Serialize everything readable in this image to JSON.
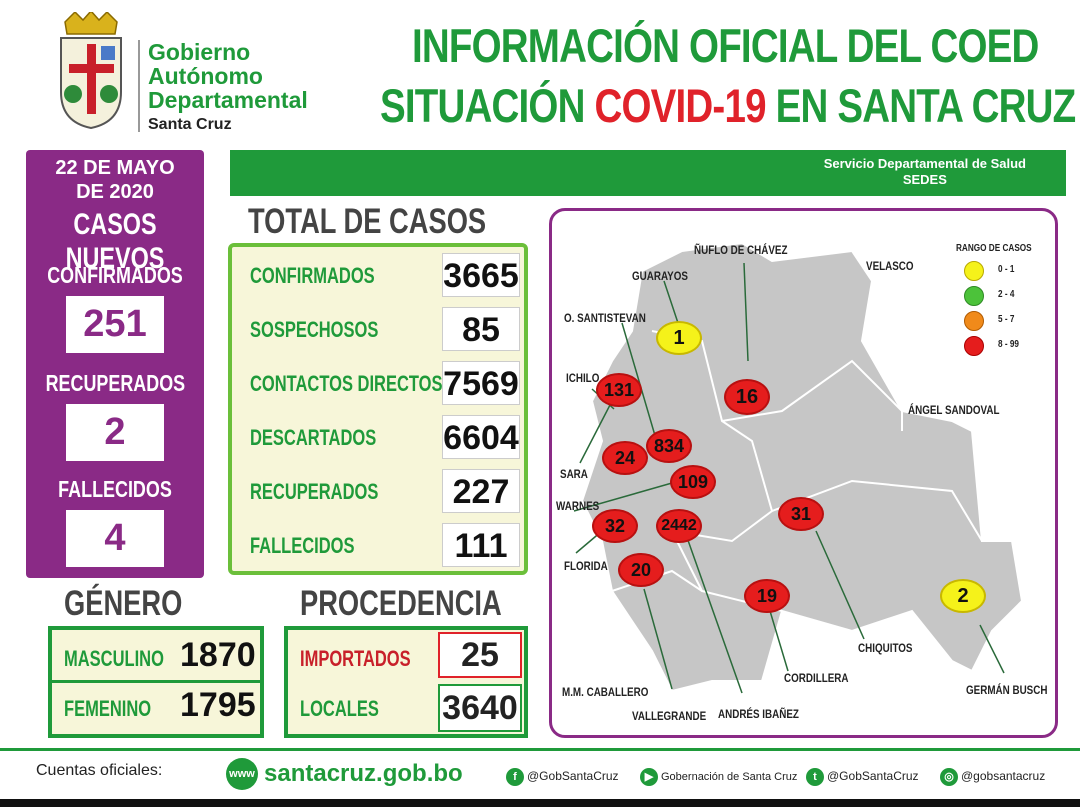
{
  "header": {
    "gov": [
      "Gobierno",
      "Autónomo",
      "Departamental"
    ],
    "gov_sub": "Santa Cruz",
    "title_line1": "INFORMACIÓN OFICIAL DEL COED",
    "title_line2_a": "SITUACIÓN ",
    "title_line2_b": "COVID-19",
    "title_line2_c": " EN SANTA CRUZ"
  },
  "banner": {
    "line1": "Servicio Departamental de Salud",
    "line2": "SEDES"
  },
  "left_panel": {
    "date1": "22 DE MAYO",
    "date2": "DE 2020",
    "title": "CASOS NUEVOS",
    "confirmados_label": "CONFIRMADOS",
    "confirmados": "251",
    "recuperados_label": "RECUPERADOS",
    "recuperados": "2",
    "fallecidos_label": "FALLECIDOS",
    "fallecidos": "4"
  },
  "total": {
    "title": "TOTAL DE CASOS",
    "rows": [
      {
        "label": "CONFIRMADOS",
        "value": "3665"
      },
      {
        "label": "SOSPECHOSOS",
        "value": "85"
      },
      {
        "label": "CONTACTOS DIRECTOS",
        "value": "7569"
      },
      {
        "label": "DESCARTADOS",
        "value": "6604"
      },
      {
        "label": "RECUPERADOS",
        "value": "227"
      },
      {
        "label": "FALLECIDOS",
        "value": "111"
      }
    ]
  },
  "genero": {
    "title": "GÉNERO",
    "masculino_label": "MASCULINO",
    "masculino": "1870",
    "femenino_label": "FEMENINO",
    "femenino": "1795"
  },
  "procedencia": {
    "title": "PROCEDENCIA",
    "importados_label": "IMPORTADOS",
    "importados": "25",
    "locales_label": "LOCALES",
    "locales": "3640"
  },
  "map": {
    "legend_title": "RANGO DE CASOS",
    "legend": [
      {
        "label": "0 - 1",
        "color": "#f5f21a"
      },
      {
        "label": "2 - 4",
        "color": "#4cc23a"
      },
      {
        "label": "5 - 7",
        "color": "#f08a1a"
      },
      {
        "label": "8 - 99",
        "color": "#e51d1d"
      }
    ],
    "labels": {
      "nuflo": "ÑUFLO DE CHÁVEZ",
      "guarayos": "GUARAYOS",
      "velasco": "VELASCO",
      "santistevan": "O. SANTISTEVAN",
      "ichilo": "ICHILO",
      "sara": "SARA",
      "warnes": "WARNES",
      "florida": "FLORIDA",
      "angel": "ÁNGEL SANDOVAL",
      "chiquitos": "CHIQUITOS",
      "cordillera": "CORDILLERA",
      "german": "GERMÁN BUSCH",
      "caballero": "M.M. CABALLERO",
      "vallegrande": "VALLEGRANDE",
      "andres": "ANDRÉS IBAÑEZ"
    },
    "values": {
      "guarayos": "1",
      "nuflo": "16",
      "ichilo": "131",
      "santistevan": "834",
      "sara": "24",
      "warnes": "109",
      "florida": "32",
      "andres": "2442",
      "chiquitos": "31",
      "vallegrande": "20",
      "cordillera": "19",
      "german": "2"
    }
  },
  "footer": {
    "label": "Cuentas oficiales:",
    "web": "santacruz.gob.bo",
    "facebook": "@GobSantaCruz",
    "youtube": "Gobernación de Santa Cruz",
    "twitter": "@GobSantaCruz",
    "instagram": "@gobsantacruz"
  }
}
